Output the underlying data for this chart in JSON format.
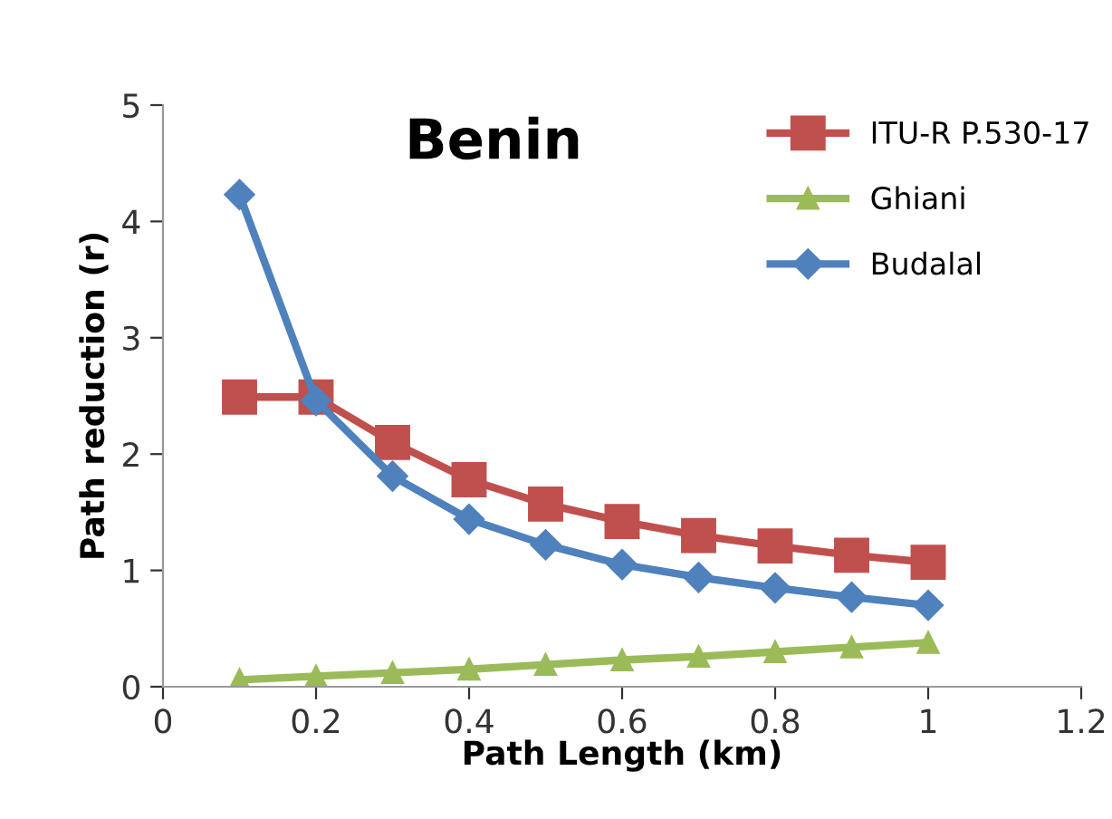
{
  "chart_data": {
    "type": "line",
    "title": "Benin",
    "xlabel": "Path Length (km)",
    "ylabel": "Path reduction (r)",
    "x": [
      0.1,
      0.2,
      0.3,
      0.4,
      0.5,
      0.6,
      0.7,
      0.8,
      0.9,
      1.0
    ],
    "series": [
      {
        "name": "ITU-R P.530-17",
        "color": "#c0504d",
        "marker": "square",
        "values": [
          2.49,
          2.49,
          2.1,
          1.78,
          1.57,
          1.42,
          1.3,
          1.21,
          1.13,
          1.07
        ]
      },
      {
        "name": "Ghiani",
        "color": "#9bbb59",
        "marker": "triangle",
        "values": [
          0.06,
          0.09,
          0.12,
          0.15,
          0.19,
          0.23,
          0.26,
          0.3,
          0.34,
          0.38
        ]
      },
      {
        "name": "Budalal",
        "color": "#4f81bd",
        "marker": "diamond",
        "values": [
          4.23,
          2.46,
          1.81,
          1.44,
          1.22,
          1.05,
          0.94,
          0.85,
          0.77,
          0.7
        ]
      }
    ],
    "xlim": [
      0,
      1.2
    ],
    "xticks": [
      0,
      0.2,
      0.4,
      0.6,
      0.8,
      1,
      1.2
    ],
    "ylim": [
      0,
      5
    ],
    "yticks": [
      0,
      1,
      2,
      3,
      4,
      5
    ],
    "grid": false,
    "legend": "top right",
    "line_style": "solid"
  }
}
